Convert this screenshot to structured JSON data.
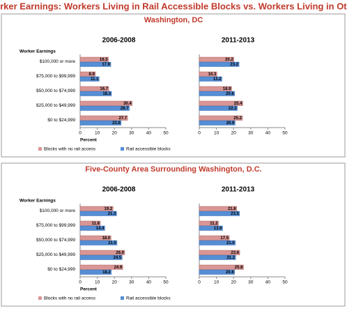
{
  "title": "Worker Earnings: Workers Living in Rail Accessible Blocks vs. Workers Living in Other",
  "chart_data": [
    {
      "type": "bar",
      "orientation": "horizontal",
      "title": "Washington, DC",
      "y_label": "Worker Earnings",
      "x_label": "Percent",
      "categories": [
        "$100,000 or more",
        "$75,000 to $99,999",
        "$50,000 to $74,999",
        "$25,000 to $49,999",
        "$0 to $24,999"
      ],
      "xlim": [
        0,
        50
      ],
      "xticks": [
        0,
        10,
        20,
        30,
        40,
        50
      ],
      "legend": [
        {
          "name": "Blocks with no rail access",
          "color": "#d99694"
        },
        {
          "name": "Rail accessible blocks",
          "color": "#558ed5"
        }
      ],
      "panels": [
        {
          "title": "2006-2008",
          "series": [
            {
              "values": [
                16.5,
                8.9,
                16.7,
                30.4,
                27.7
              ],
              "value_labels": [
                "16.5",
                "8.9",
                "16.7",
                "30.4",
                "27.7"
              ]
            },
            {
              "values": [
                17.9,
                11.1,
                18.3,
                28.7,
                23.9
              ],
              "value_labels": [
                "17.9",
                "11.1",
                "18.3",
                "28.7",
                "23.9"
              ]
            }
          ]
        },
        {
          "title": "2011-2013",
          "series": [
            {
              "values": [
                20.2,
                10.3,
                18.9,
                25.4,
                25.2
              ],
              "value_labels": [
                "20.2",
                "10.3",
                "18.9",
                "25.4",
                "25.2"
              ]
            },
            {
              "values": [
                23.2,
                13.2,
                20.6,
                22.2,
                20.9
              ],
              "value_labels": [
                "23.2",
                "13.2",
                "20.6",
                "22.2",
                "20.9"
              ]
            }
          ]
        }
      ]
    },
    {
      "type": "bar",
      "orientation": "horizontal",
      "title": "Five-County Area Surrounding Washington, D.C.",
      "y_label": "Worker Earnings",
      "x_label": "Percent",
      "categories": [
        "$100,000 or more",
        "$75,000 to $99,999",
        "$50,000 to $74,999",
        "$25,000 to $49,999",
        "$0 to $24,999"
      ],
      "xlim": [
        0,
        50
      ],
      "xticks": [
        0,
        10,
        20,
        30,
        40,
        50
      ],
      "legend": [
        {
          "name": "Blocks with no rail access",
          "color": "#d99694"
        },
        {
          "name": "Rail accessible blocks",
          "color": "#558ed5"
        }
      ],
      "panels": [
        {
          "title": "2006-2008",
          "series": [
            {
              "values": [
                19.2,
                11.8,
                18.0,
                26.0,
                24.9
              ],
              "value_labels": [
                "19.2",
                "11.8",
                "18.0",
                "26.0",
                "24.9"
              ]
            },
            {
              "values": [
                21.3,
                14.4,
                21.5,
                24.5,
                18.2
              ],
              "value_labels": [
                "21.3",
                "14.4",
                "21.5",
                "24.5",
                "18.2"
              ]
            }
          ]
        },
        {
          "title": "2011-2013",
          "series": [
            {
              "values": [
                21.8,
                11.2,
                17.5,
                23.6,
                25.8
              ],
              "value_labels": [
                "21.8",
                "11.2",
                "17.5",
                "23.6",
                "25.8"
              ]
            },
            {
              "values": [
                23.5,
                13.6,
                21.0,
                21.2,
                20.6
              ],
              "value_labels": [
                "23.5",
                "13.6",
                "21.0",
                "21.2",
                "20.6"
              ]
            }
          ]
        }
      ]
    }
  ]
}
